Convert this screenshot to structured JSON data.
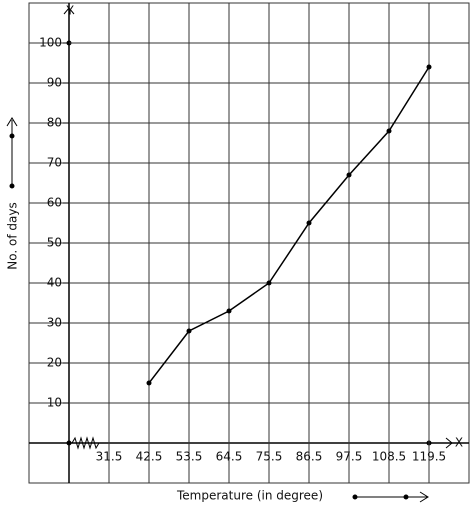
{
  "chart_data": {
    "type": "line",
    "x_label": "Temperature (in degree)",
    "y_label": "No. of days",
    "x_axis_name": "X",
    "y_axis_name": "Y",
    "x": [
      42.5,
      53.5,
      64.5,
      75.5,
      86.5,
      97.5,
      108.5,
      119.5
    ],
    "series": [
      {
        "color": "#000000",
        "values": [
          15,
          28,
          33,
          40,
          55,
          67,
          78,
          94
        ]
      }
    ],
    "xlim": [
      9.5,
      130.5
    ],
    "xticks": [
      31.5,
      42.5,
      53.5,
      64.5,
      75.5,
      86.5,
      97.5,
      108.5,
      119.5
    ],
    "ylim": [
      -10,
      110
    ],
    "yticks": [
      10,
      20,
      30,
      40,
      50,
      60,
      70,
      80,
      90,
      100
    ],
    "grid": true
  }
}
